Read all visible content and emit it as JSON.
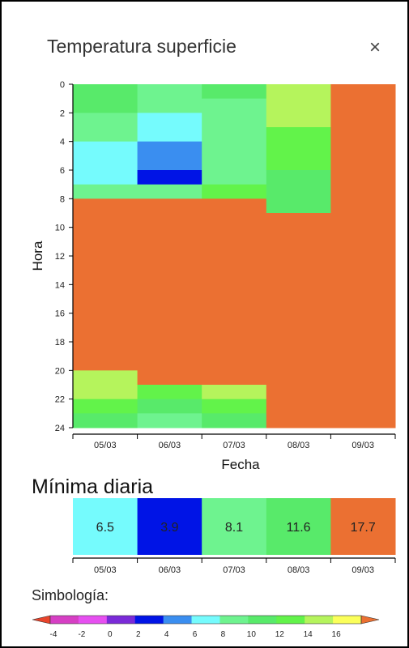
{
  "modal": {
    "title": "Temperatura superficie",
    "close_icon": "close-icon",
    "close_glyph": "×"
  },
  "chart_data": [
    {
      "type": "heatmap",
      "title": "",
      "xlabel": "Fecha",
      "ylabel": "Hora",
      "x_categories": [
        "05/03",
        "06/03",
        "07/03",
        "08/03",
        "09/03"
      ],
      "y_ticks": [
        "0",
        "2",
        "4",
        "6",
        "8",
        "10",
        "12",
        "14",
        "16",
        "18",
        "20",
        "22",
        "24"
      ],
      "ylim": [
        0,
        24
      ],
      "columns": [
        [
          {
            "from": 0,
            "to": 2,
            "value": 11
          },
          {
            "from": 2,
            "to": 4,
            "value": 9
          },
          {
            "from": 4,
            "to": 7,
            "value": 7
          },
          {
            "from": 7,
            "to": 8,
            "value": 9
          },
          {
            "from": 8,
            "to": 20,
            "value": 17
          },
          {
            "from": 20,
            "to": 22,
            "value": 15
          },
          {
            "from": 22,
            "to": 23,
            "value": 13
          },
          {
            "from": 23,
            "to": 24,
            "value": 11
          }
        ],
        [
          {
            "from": 0,
            "to": 2,
            "value": 9
          },
          {
            "from": 2,
            "to": 4,
            "value": 7
          },
          {
            "from": 4,
            "to": 6,
            "value": 5
          },
          {
            "from": 6,
            "to": 7,
            "value": 3
          },
          {
            "from": 7,
            "to": 8,
            "value": 9
          },
          {
            "from": 8,
            "to": 21,
            "value": 17
          },
          {
            "from": 21,
            "to": 22,
            "value": 13
          },
          {
            "from": 22,
            "to": 23,
            "value": 11
          },
          {
            "from": 23,
            "to": 24,
            "value": 9
          }
        ],
        [
          {
            "from": 0,
            "to": 1,
            "value": 11
          },
          {
            "from": 1,
            "to": 7,
            "value": 9
          },
          {
            "from": 7,
            "to": 8,
            "value": 13
          },
          {
            "from": 8,
            "to": 21,
            "value": 17
          },
          {
            "from": 21,
            "to": 22,
            "value": 15
          },
          {
            "from": 22,
            "to": 23,
            "value": 13
          },
          {
            "from": 23,
            "to": 24,
            "value": 11
          }
        ],
        [
          {
            "from": 0,
            "to": 3,
            "value": 15
          },
          {
            "from": 3,
            "to": 6,
            "value": 13
          },
          {
            "from": 6,
            "to": 9,
            "value": 11
          },
          {
            "from": 9,
            "to": 24,
            "value": 17
          }
        ],
        [
          {
            "from": 0,
            "to": 24,
            "value": 17
          }
        ]
      ]
    },
    {
      "type": "table",
      "title": "Mínima diaria",
      "categories": [
        "05/03",
        "06/03",
        "07/03",
        "08/03",
        "09/03"
      ],
      "values": [
        6.5,
        3.9,
        8.1,
        11.6,
        17.7
      ],
      "value_labels": [
        "6.5",
        "3.9",
        "8.1",
        "11.6",
        "17.7"
      ]
    }
  ],
  "legend": {
    "title": "Simbología:",
    "ticks": [
      "-4",
      "-2",
      "0",
      "2",
      "4",
      "6",
      "8",
      "10",
      "12",
      "14",
      "16"
    ],
    "colors": {
      "under": "#e8442c",
      "bins": [
        "#d63fc4",
        "#e64ff0",
        "#7a2ad8",
        "#0014e6",
        "#3a8ef0",
        "#75fbfd",
        "#6ef38f",
        "#58ea6a",
        "#62f34a",
        "#b5f45c",
        "#fbff5a"
      ],
      "over": "#eb7032"
    }
  }
}
